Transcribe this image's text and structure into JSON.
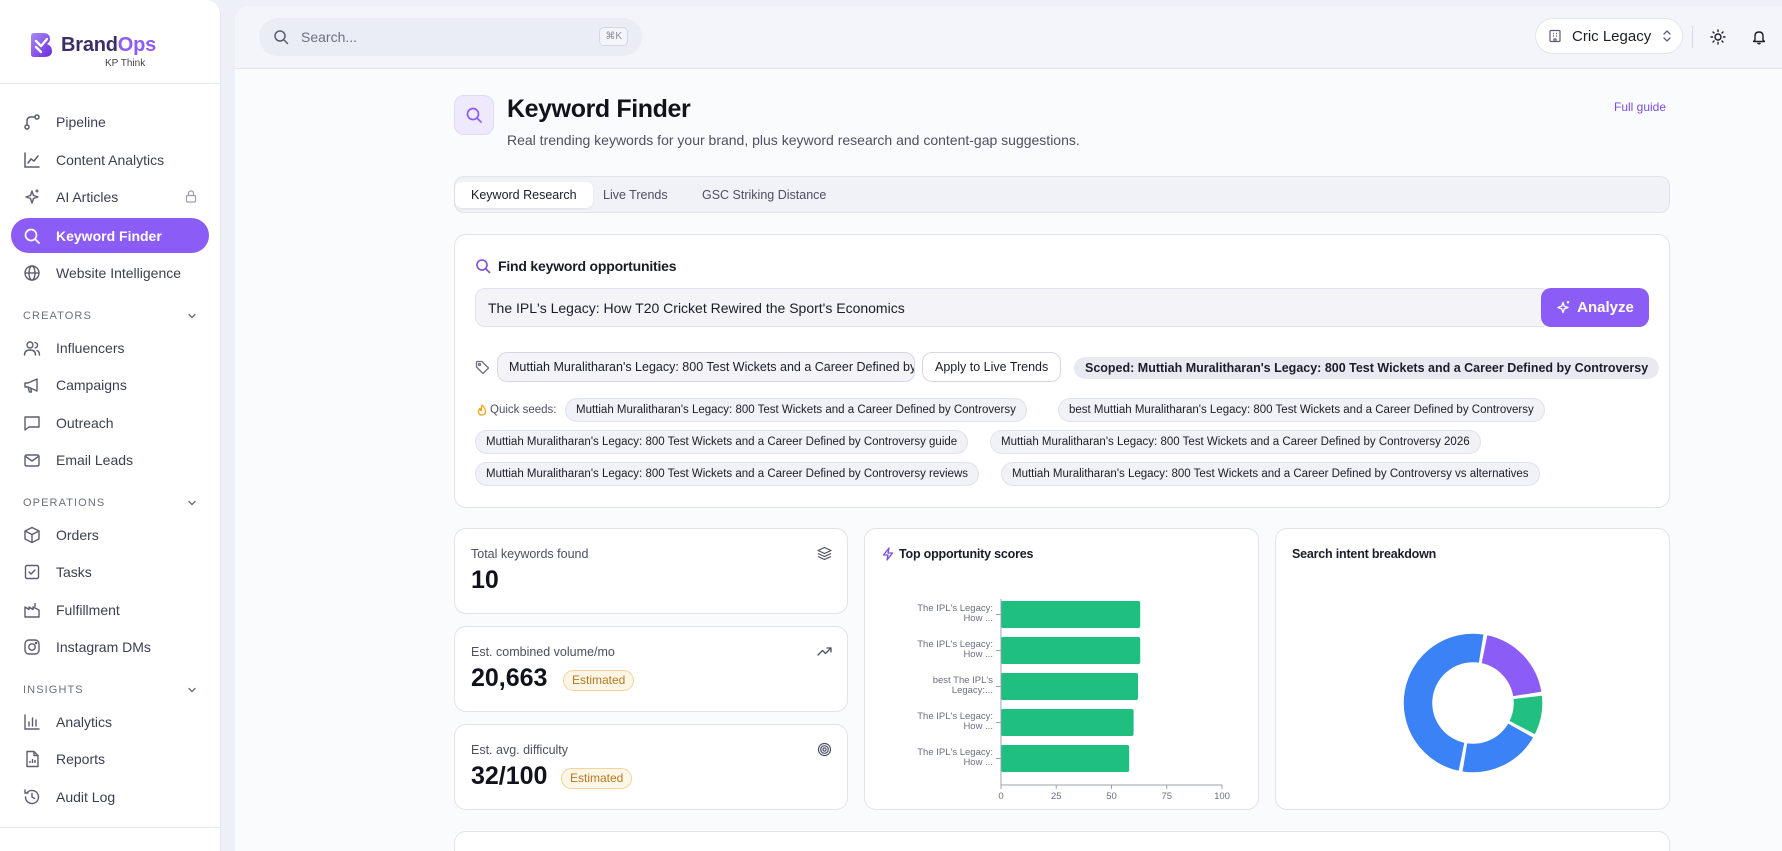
{
  "brand": {
    "name_a": "Brand",
    "name_b": "Ops",
    "sub": "KP Think"
  },
  "sidebar": {
    "items": [
      {
        "label": "Pipeline",
        "icon": "pipeline-icon"
      },
      {
        "label": "Content Analytics",
        "icon": "line-chart-icon"
      },
      {
        "label": "AI Articles",
        "icon": "sparkles-icon",
        "locked": true
      },
      {
        "label": "Keyword Finder",
        "icon": "search-icon",
        "active": true
      },
      {
        "label": "Website Intelligence",
        "icon": "globe-icon"
      }
    ],
    "sections": [
      {
        "title": "CREATORS",
        "items": [
          {
            "label": "Influencers",
            "icon": "users-icon"
          },
          {
            "label": "Campaigns",
            "icon": "megaphone-icon"
          },
          {
            "label": "Outreach",
            "icon": "message-icon"
          },
          {
            "label": "Email Leads",
            "icon": "mail-icon"
          }
        ]
      },
      {
        "title": "OPERATIONS",
        "items": [
          {
            "label": "Orders",
            "icon": "package-icon"
          },
          {
            "label": "Tasks",
            "icon": "checkbox-icon"
          },
          {
            "label": "Fulfillment",
            "icon": "fulfillment-icon"
          },
          {
            "label": "Instagram DMs",
            "icon": "instagram-icon"
          }
        ]
      },
      {
        "title": "INSIGHTS",
        "items": [
          {
            "label": "Analytics",
            "icon": "bar-chart-icon"
          },
          {
            "label": "Reports",
            "icon": "report-icon"
          },
          {
            "label": "Audit Log",
            "icon": "history-icon"
          }
        ]
      }
    ]
  },
  "topbar": {
    "search_placeholder": "Search...",
    "shortcut": "⌘K",
    "workspace": "Cric Legacy"
  },
  "page": {
    "title": "Keyword Finder",
    "subtitle": "Real trending keywords for your brand, plus keyword research and content-gap suggestions.",
    "full_guide": "Full guide",
    "tabs": [
      {
        "label": "Keyword Research",
        "active": true
      },
      {
        "label": "Live Trends"
      },
      {
        "label": "GSC Striking Distance"
      }
    ]
  },
  "finder": {
    "heading": "Find keyword opportunities",
    "query": "The IPL's Legacy: How T20 Cricket Rewired the Sport's Economics",
    "analyze_label": "Analyze",
    "scope_value": "Muttiah Muralitharan's Legacy: 800 Test Wickets and a Career Defined by Controversy",
    "apply_label": "Apply to Live Trends",
    "scoped_label": "Scoped: Muttiah Muralitharan's Legacy: 800 Test Wickets and a Career Defined by Controversy",
    "seeds_label": "Quick seeds:",
    "seeds": [
      "Muttiah Muralitharan's Legacy: 800 Test Wickets and a Career Defined by Controversy",
      "best Muttiah Muralitharan's Legacy: 800 Test Wickets and a Career Defined by Controversy",
      "Muttiah Muralitharan's Legacy: 800 Test Wickets and a Career Defined by Controversy guide",
      "Muttiah Muralitharan's Legacy: 800 Test Wickets and a Career Defined by Controversy 2026",
      "Muttiah Muralitharan's Legacy: 800 Test Wickets and a Career Defined by Controversy reviews",
      "Muttiah Muralitharan's Legacy: 800 Test Wickets and a Career Defined by Controversy vs alternatives"
    ]
  },
  "stats": {
    "total_label": "Total keywords found",
    "total_value": "10",
    "volume_label": "Est. combined volume/mo",
    "volume_value": "20,663",
    "volume_badge": "Estimated",
    "difficulty_label": "Est. avg. difficulty",
    "difficulty_value": "32/100",
    "difficulty_badge": "Estimated"
  },
  "opportunity_chart_title": "Top opportunity scores",
  "intent_chart_title": "Search intent breakdown",
  "colors": {
    "accent": "#8b5cf6",
    "bar": "#1fbf80",
    "donut_blue": "#3b82f6",
    "donut_violet": "#8b5cf6",
    "donut_green": "#22c080"
  },
  "chart_data": [
    {
      "type": "bar",
      "orientation": "horizontal",
      "title": "Top opportunity scores",
      "categories": [
        [
          "The IPL's Legacy:",
          "How ..."
        ],
        [
          "The IPL's Legacy:",
          "How ..."
        ],
        [
          "best The IPL's",
          "Legacy:..."
        ],
        [
          "The IPL's Legacy:",
          "How ..."
        ],
        [
          "The IPL's Legacy:",
          "How ..."
        ]
      ],
      "values": [
        63,
        63,
        62,
        60,
        58
      ],
      "xlim": [
        0,
        100
      ],
      "xticks": [
        0,
        25,
        50,
        75,
        100
      ]
    },
    {
      "type": "pie",
      "donut": true,
      "title": "Search intent breakdown",
      "slices": [
        {
          "value": 20,
          "color": "#8b5cf6"
        },
        {
          "value": 10,
          "color": "#22c080"
        },
        {
          "value": 20,
          "color": "#3b82f6"
        },
        {
          "value": 50,
          "color": "#3b82f6"
        }
      ]
    }
  ]
}
